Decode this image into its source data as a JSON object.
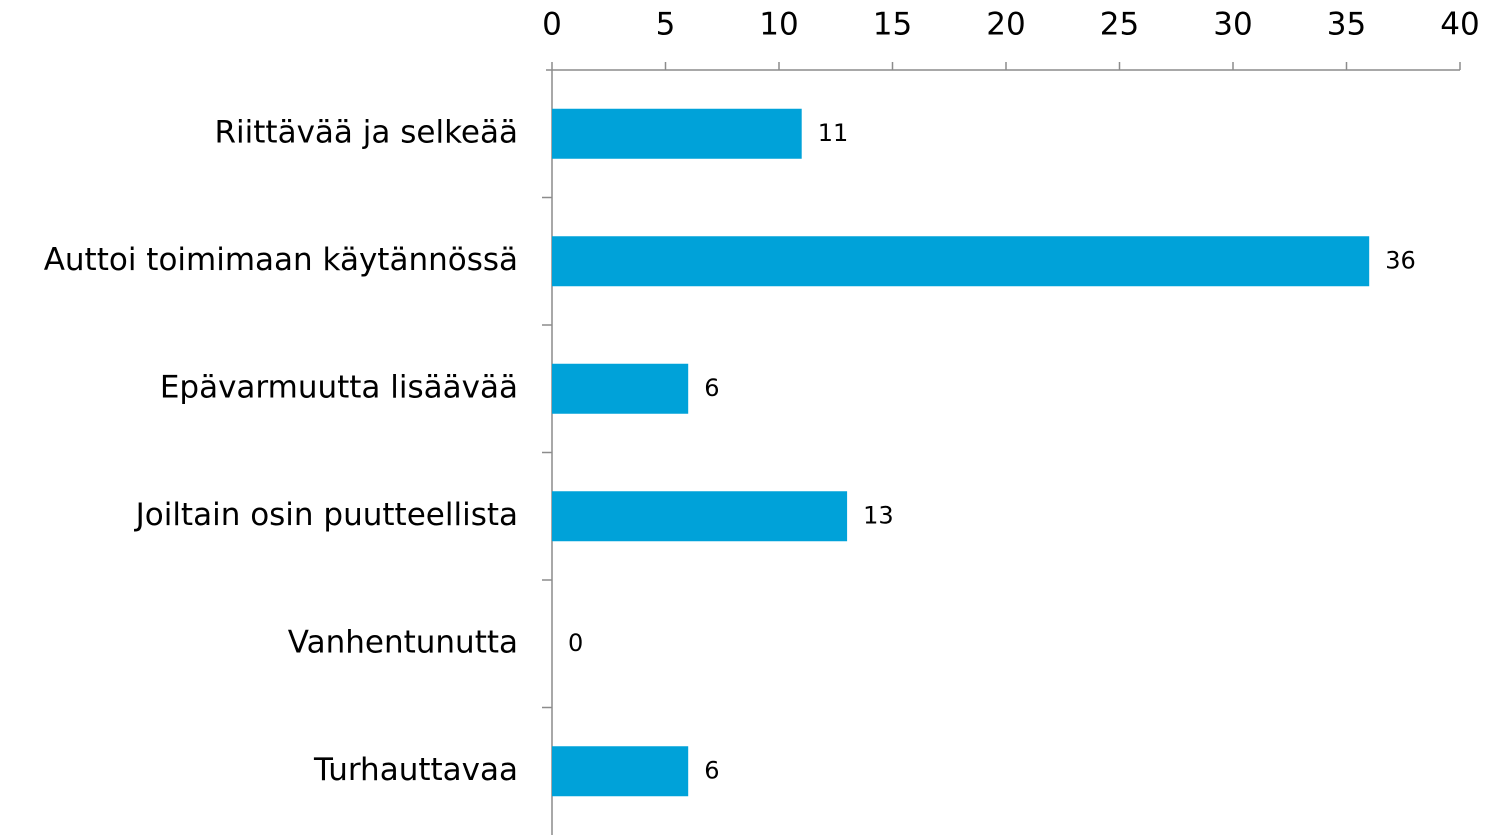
{
  "chart_data": {
    "type": "bar",
    "categories": [
      "Riittävää ja selkeää",
      "Auttoi toimimaan käytännössä",
      "Epävarmuutta lisäävää",
      "Joiltain osin puutteellista",
      "Vanhentunutta",
      "Turhauttavaa"
    ],
    "values": [
      11,
      36,
      6,
      13,
      0,
      6
    ],
    "color": "#00a2d9",
    "xlim": [
      0,
      40
    ],
    "xticks": [
      0,
      5,
      10,
      15,
      20,
      25,
      30,
      35,
      40
    ]
  }
}
